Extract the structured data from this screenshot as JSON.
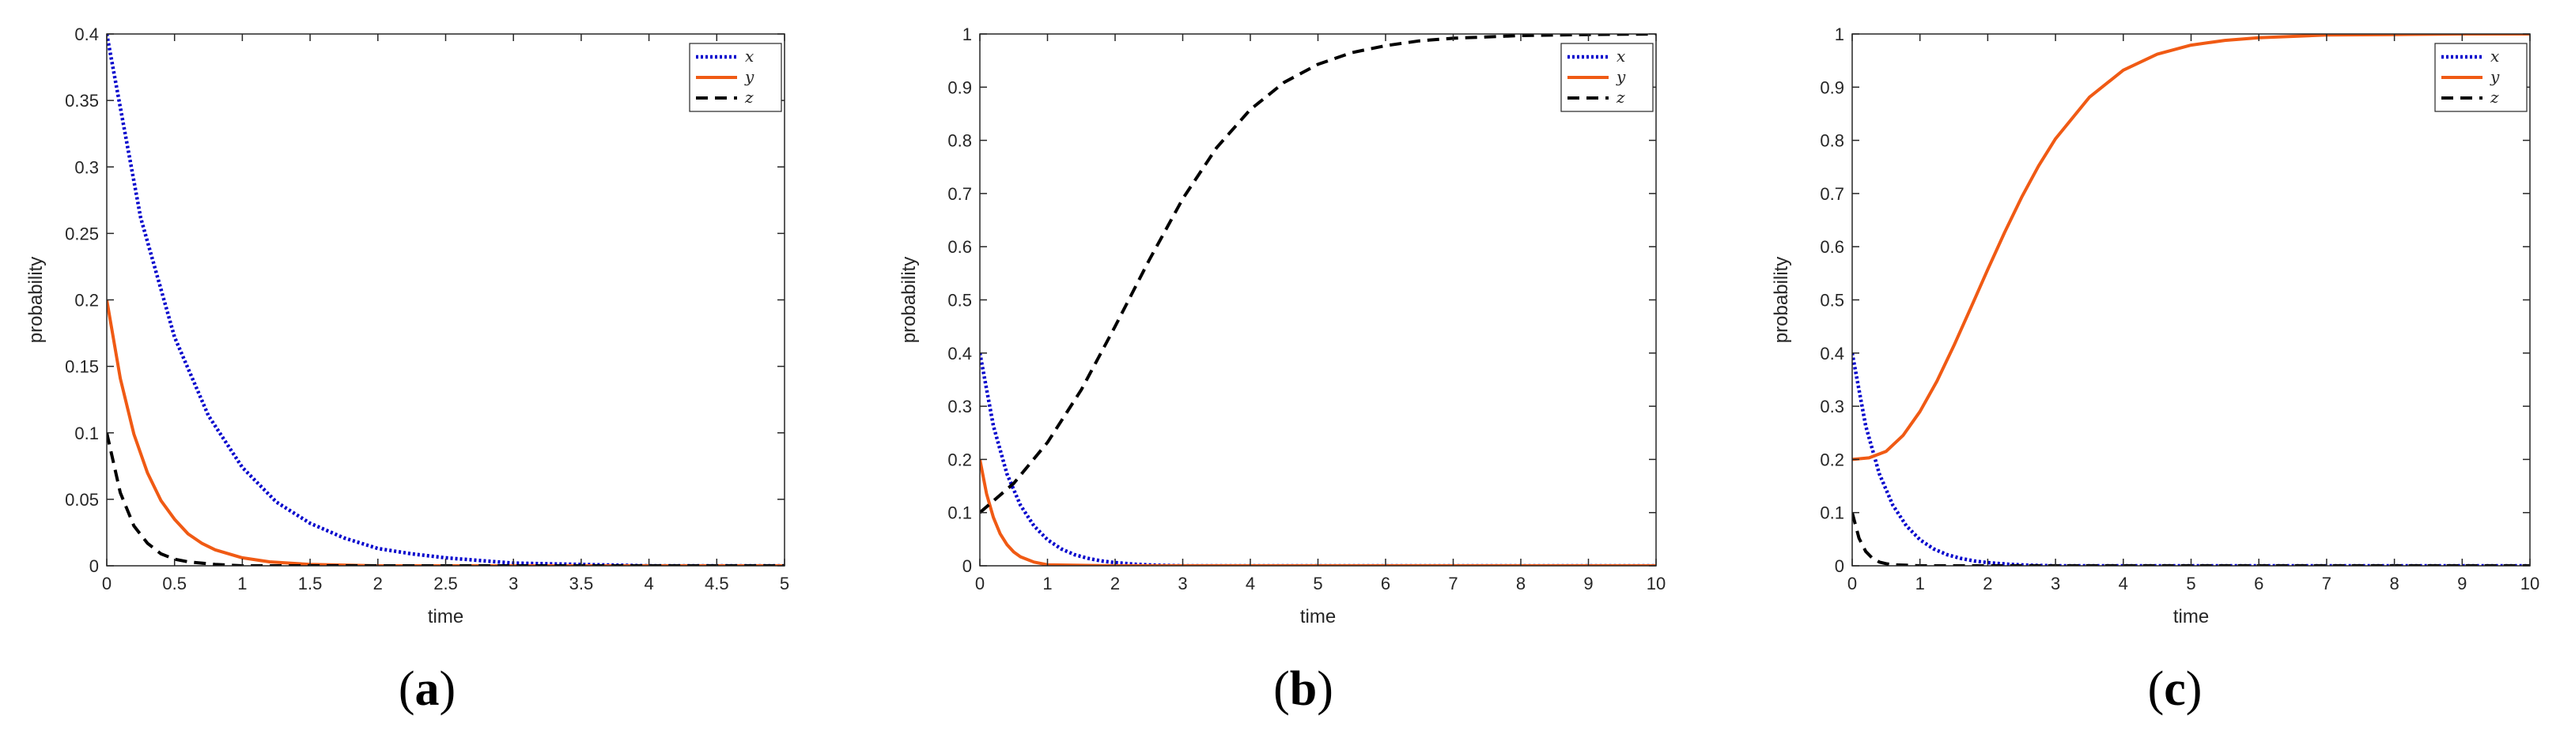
{
  "colors": {
    "x": "#0000cc",
    "y": "#f05a14",
    "z": "#000000",
    "axis": "#262626",
    "background": "#ffffff"
  },
  "chart_data": [
    {
      "type": "line",
      "panel_label": "a",
      "xlabel": "time",
      "ylabel": "probability",
      "xlim": [
        0,
        5
      ],
      "ylim": [
        0,
        0.4
      ],
      "xticks": [
        0,
        0.5,
        1,
        1.5,
        2,
        2.5,
        3,
        3.5,
        4,
        4.5,
        5
      ],
      "xtick_labels": [
        "0",
        "0.5",
        "1",
        "1.5",
        "2",
        "2.5",
        "3",
        "3.5",
        "4",
        "4.5",
        "5"
      ],
      "yticks": [
        0,
        0.05,
        0.1,
        0.15,
        0.2,
        0.25,
        0.3,
        0.35,
        0.4
      ],
      "ytick_labels": [
        "0",
        "0.05",
        "0.1",
        "0.15",
        "0.2",
        "0.25",
        "0.3",
        "0.35",
        "0.4"
      ],
      "grid": false,
      "legend_position": "top-right",
      "series": [
        {
          "name": "x",
          "style": "dotted",
          "color": "#0000cc",
          "x": [
            0,
            0.25,
            0.5,
            0.75,
            1,
            1.25,
            1.5,
            1.75,
            2,
            2.25,
            2.5,
            2.75,
            3,
            3.5,
            4,
            4.5,
            5
          ],
          "y": [
            0.4,
            0.262,
            0.172,
            0.113,
            0.074,
            0.048,
            0.032,
            0.021,
            0.013,
            0.009,
            0.006,
            0.004,
            0.002,
            0.001,
            0,
            0,
            0
          ]
        },
        {
          "name": "y",
          "style": "solid",
          "color": "#f05a14",
          "x": [
            0,
            0.1,
            0.2,
            0.3,
            0.4,
            0.5,
            0.6,
            0.7,
            0.8,
            1,
            1.2,
            1.5,
            2,
            3,
            4,
            5
          ],
          "y": [
            0.2,
            0.141,
            0.099,
            0.07,
            0.049,
            0.035,
            0.024,
            0.017,
            0.012,
            0.006,
            0.003,
            0.001,
            0,
            0,
            0,
            0
          ]
        },
        {
          "name": "z",
          "style": "dashed",
          "color": "#000000",
          "x": [
            0,
            0.1,
            0.2,
            0.3,
            0.4,
            0.5,
            0.6,
            0.8,
            1,
            1.5,
            2,
            5
          ],
          "y": [
            0.1,
            0.055,
            0.03,
            0.017,
            0.009,
            0.005,
            0.003,
            0.001,
            0,
            0,
            0,
            0
          ]
        }
      ]
    },
    {
      "type": "line",
      "panel_label": "b",
      "xlabel": "time",
      "ylabel": "probability",
      "xlim": [
        0,
        10
      ],
      "ylim": [
        0,
        1
      ],
      "xticks": [
        0,
        1,
        2,
        3,
        4,
        5,
        6,
        7,
        8,
        9,
        10
      ],
      "xtick_labels": [
        "0",
        "1",
        "2",
        "3",
        "4",
        "5",
        "6",
        "7",
        "8",
        "9",
        "10"
      ],
      "yticks": [
        0,
        0.1,
        0.2,
        0.3,
        0.4,
        0.5,
        0.6,
        0.7,
        0.8,
        0.9,
        1
      ],
      "ytick_labels": [
        "0",
        "0.1",
        "0.2",
        "0.3",
        "0.4",
        "0.5",
        "0.6",
        "0.7",
        "0.8",
        "0.9",
        "1"
      ],
      "grid": false,
      "legend_position": "top-right",
      "series": [
        {
          "name": "x",
          "style": "dotted",
          "color": "#0000cc",
          "x": [
            0,
            0.2,
            0.4,
            0.6,
            0.8,
            1,
            1.2,
            1.4,
            1.6,
            1.8,
            2,
            2.3,
            2.6,
            3,
            10
          ],
          "y": [
            0.4,
            0.263,
            0.173,
            0.114,
            0.075,
            0.049,
            0.032,
            0.021,
            0.014,
            0.009,
            0.006,
            0.003,
            0.001,
            0,
            0
          ]
        },
        {
          "name": "y",
          "style": "solid",
          "color": "#f05a14",
          "x": [
            0,
            0.1,
            0.2,
            0.3,
            0.4,
            0.5,
            0.6,
            0.8,
            1,
            2,
            10
          ],
          "y": [
            0.2,
            0.135,
            0.091,
            0.06,
            0.04,
            0.026,
            0.017,
            0.007,
            0.002,
            0,
            0
          ]
        },
        {
          "name": "z",
          "style": "dashed",
          "color": "#000000",
          "x": [
            0,
            0.5,
            1,
            1.5,
            2,
            2.5,
            3,
            3.5,
            4,
            4.5,
            5,
            5.5,
            6,
            6.5,
            7,
            8,
            9,
            10
          ],
          "y": [
            0.1,
            0.155,
            0.232,
            0.331,
            0.45,
            0.574,
            0.69,
            0.786,
            0.858,
            0.909,
            0.943,
            0.965,
            0.978,
            0.987,
            0.992,
            0.997,
            0.999,
            1.0
          ]
        }
      ]
    },
    {
      "type": "line",
      "panel_label": "c",
      "xlabel": "time",
      "ylabel": "probability",
      "xlim": [
        0,
        10
      ],
      "ylim": [
        0,
        1
      ],
      "xticks": [
        0,
        1,
        2,
        3,
        4,
        5,
        6,
        7,
        8,
        9,
        10
      ],
      "xtick_labels": [
        "0",
        "1",
        "2",
        "3",
        "4",
        "5",
        "6",
        "7",
        "8",
        "9",
        "10"
      ],
      "yticks": [
        0,
        0.1,
        0.2,
        0.3,
        0.4,
        0.5,
        0.6,
        0.7,
        0.8,
        0.9,
        1
      ],
      "ytick_labels": [
        "0",
        "0.1",
        "0.2",
        "0.3",
        "0.4",
        "0.5",
        "0.6",
        "0.7",
        "0.8",
        "0.9",
        "1"
      ],
      "grid": false,
      "legend_position": "top-right",
      "series": [
        {
          "name": "x",
          "style": "dotted",
          "color": "#0000cc",
          "x": [
            0,
            0.2,
            0.4,
            0.6,
            0.8,
            1,
            1.2,
            1.4,
            1.6,
            1.8,
            2,
            2.3,
            2.6,
            3,
            10
          ],
          "y": [
            0.4,
            0.263,
            0.173,
            0.114,
            0.075,
            0.049,
            0.032,
            0.021,
            0.014,
            0.009,
            0.006,
            0.003,
            0.001,
            0,
            0
          ]
        },
        {
          "name": "y",
          "style": "solid",
          "color": "#f05a14",
          "x": [
            0,
            0.25,
            0.5,
            0.75,
            1,
            1.25,
            1.5,
            1.75,
            2,
            2.25,
            2.5,
            2.75,
            3,
            3.5,
            4,
            4.5,
            5,
            5.5,
            6,
            7,
            8,
            9,
            10
          ],
          "y": [
            0.2,
            0.203,
            0.215,
            0.245,
            0.29,
            0.347,
            0.414,
            0.485,
            0.557,
            0.627,
            0.693,
            0.752,
            0.803,
            0.881,
            0.932,
            0.962,
            0.979,
            0.988,
            0.993,
            0.998,
            0.999,
            1.0,
            1.0
          ]
        },
        {
          "name": "z",
          "style": "dashed",
          "color": "#000000",
          "x": [
            0,
            0.1,
            0.2,
            0.3,
            0.4,
            0.5,
            0.6,
            0.8,
            1,
            10
          ],
          "y": [
            0.1,
            0.052,
            0.027,
            0.014,
            0.007,
            0.004,
            0.002,
            0.001,
            0,
            0
          ]
        }
      ]
    }
  ],
  "captions": [
    {
      "open": "(",
      "letter": "a",
      "close": ")"
    },
    {
      "open": "(",
      "letter": "b",
      "close": ")"
    },
    {
      "open": "(",
      "letter": "c",
      "close": ")"
    }
  ]
}
